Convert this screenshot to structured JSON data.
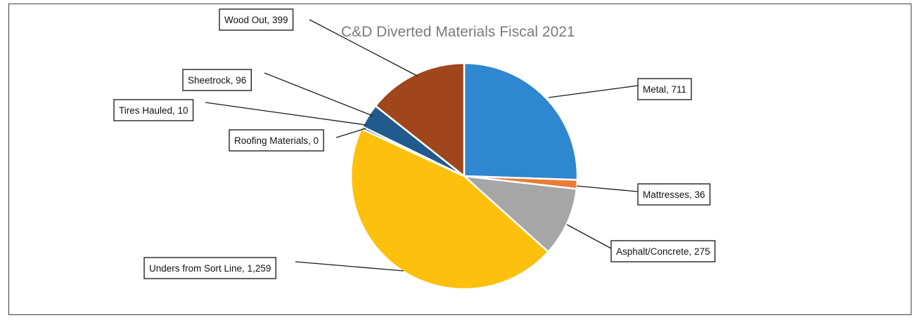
{
  "chart_data": {
    "type": "pie",
    "title": "C&D Diverted Materials Fiscal 2021",
    "slices": [
      {
        "label": "Metal",
        "value": 711,
        "display": "Metal, 711",
        "color": "#2e87cf"
      },
      {
        "label": "Mattresses",
        "value": 36,
        "display": "Mattresses, 36",
        "color": "#e97d35"
      },
      {
        "label": "Asphalt/Concrete",
        "value": 275,
        "display": "Asphalt/Concrete, 275",
        "color": "#a6a6a6"
      },
      {
        "label": "Unders from Sort Line",
        "value": 1259,
        "display": "Unders from Sort Line, 1,259",
        "color": "#fdc00c"
      },
      {
        "label": "Roofing Materials",
        "value": 0,
        "display": "Roofing Materials, 0",
        "color": "#4474c4"
      },
      {
        "label": "Tires Hauled",
        "value": 10,
        "display": "Tires Hauled, 10",
        "color": "#255e91"
      },
      {
        "label": "Sheetrock",
        "value": 96,
        "display": "Sheetrock, 96",
        "color": "#215a8c"
      },
      {
        "label": "Wood Out",
        "value": 399,
        "display": "Wood Out, 399",
        "color": "#a0461c"
      }
    ],
    "start_angle": "12 o'clock",
    "direction": "clockwise",
    "legend": "none",
    "data_labels": "callouts"
  }
}
